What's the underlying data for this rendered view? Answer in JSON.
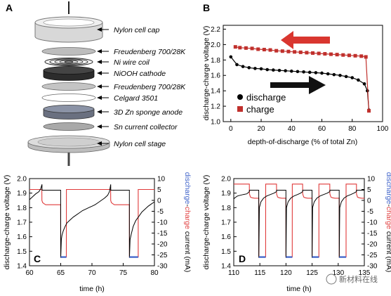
{
  "panel_a": {
    "label": "A",
    "components": [
      "Nylon cell cap",
      "Freudenberg 700/28K",
      "Ni wire coil",
      "NiOOH cathode",
      "Freudenberg 700/28K",
      "Celgard 3501",
      "3D Zn sponge anode",
      "Sn current collector",
      "Nylon cell stage"
    ]
  },
  "watermark": "新材料在线",
  "chart_data": [
    {
      "id": "B",
      "type": "scatter",
      "label": "B",
      "xlabel": "depth-of-discharge (% of total Zn)",
      "ylabel": "discharge-charge voltage (V)",
      "xlim": [
        -5,
        100
      ],
      "ylim": [
        1.0,
        2.25
      ],
      "xticks": [
        "0",
        "20",
        "40",
        "60",
        "80",
        "100"
      ],
      "yticks": [
        "1.0",
        "1.2",
        "1.4",
        "1.6",
        "1.8",
        "2.0",
        "2.2"
      ],
      "grid": false,
      "legend_position": "bottom-left",
      "series": [
        {
          "name": "discharge",
          "color": "#000000",
          "marker": "circle",
          "x": [
            0,
            4,
            8,
            12,
            16,
            20,
            24,
            28,
            32,
            36,
            40,
            44,
            48,
            52,
            56,
            60,
            64,
            68,
            72,
            76,
            80,
            84,
            88,
            90,
            91
          ],
          "y": [
            1.84,
            1.74,
            1.715,
            1.7,
            1.69,
            1.685,
            1.675,
            1.67,
            1.665,
            1.66,
            1.655,
            1.65,
            1.645,
            1.64,
            1.635,
            1.63,
            1.62,
            1.61,
            1.6,
            1.585,
            1.57,
            1.54,
            1.49,
            1.4,
            1.15
          ]
        },
        {
          "name": "charge",
          "color": "#c0302c",
          "marker": "square",
          "x": [
            91,
            89,
            86,
            82,
            78,
            74,
            70,
            66,
            62,
            58,
            54,
            50,
            46,
            42,
            38,
            34,
            30,
            26,
            22,
            18,
            14,
            10,
            6,
            3
          ],
          "y": [
            1.14,
            1.84,
            1.85,
            1.855,
            1.86,
            1.865,
            1.87,
            1.875,
            1.88,
            1.885,
            1.89,
            1.895,
            1.9,
            1.905,
            1.91,
            1.915,
            1.92,
            1.93,
            1.935,
            1.94,
            1.95,
            1.955,
            1.96,
            1.97
          ]
        }
      ]
    },
    {
      "id": "C",
      "type": "line",
      "label": "C",
      "xlabel": "time (h)",
      "ylabel": "discharge-charge voltage (V)",
      "ylabel_right": [
        "discharge",
        "-",
        "charge",
        " current (mA)"
      ],
      "xlim": [
        60,
        80
      ],
      "ylim": [
        1.4,
        2.0
      ],
      "ylim_right": [
        -30,
        10
      ],
      "xticks": [
        "60",
        "65",
        "70",
        "75",
        "80"
      ],
      "yticks": [
        "1.4",
        "1.5",
        "1.6",
        "1.7",
        "1.8",
        "1.9",
        "2.0"
      ],
      "yticks_right": [
        "-30",
        "-25",
        "-20",
        "-15",
        "-10",
        "-5",
        "0",
        "5",
        "10"
      ],
      "series": [
        {
          "name": "voltage",
          "color": "#000000",
          "axis": "left",
          "x": [
            60.0,
            60.5,
            61.0,
            61.5,
            61.8,
            62.0,
            62.01,
            62.5,
            63.0,
            63.5,
            64.0,
            64.5,
            64.99,
            65.0,
            65.1,
            65.2,
            65.4,
            65.7,
            66.0,
            66.5,
            67.0,
            67.5,
            68.0,
            68.5,
            69.0,
            69.5,
            70.0,
            70.5,
            71.0,
            71.5,
            72.0,
            72.5,
            72.8,
            73.0,
            73.01,
            73.5,
            74.0,
            74.5,
            75.0,
            75.5,
            75.99,
            76.0,
            76.1,
            76.3,
            76.6,
            77.0,
            77.5,
            78.0,
            78.5,
            79.0,
            79.5,
            80.0
          ],
          "y": [
            1.855,
            1.875,
            1.895,
            1.91,
            1.93,
            1.96,
            1.92,
            1.92,
            1.92,
            1.92,
            1.92,
            1.92,
            1.92,
            1.455,
            1.58,
            1.61,
            1.64,
            1.67,
            1.695,
            1.715,
            1.735,
            1.75,
            1.765,
            1.78,
            1.79,
            1.8,
            1.81,
            1.82,
            1.835,
            1.85,
            1.865,
            1.885,
            1.91,
            1.96,
            1.92,
            1.92,
            1.92,
            1.92,
            1.92,
            1.92,
            1.92,
            1.455,
            1.58,
            1.62,
            1.67,
            1.71,
            1.74,
            1.77,
            1.79,
            1.81,
            1.825,
            1.84
          ]
        },
        {
          "name": "current",
          "color": "#e03a3a",
          "axis": "right",
          "x": [
            60.0,
            61.98,
            61.99,
            62.1,
            62.3,
            62.6,
            63.0,
            64.99,
            65.0,
            65.9,
            65.91,
            72.99,
            73.0,
            73.1,
            73.3,
            73.6,
            74.0,
            75.99,
            76.0,
            77.4,
            77.41,
            80.0
          ],
          "y": [
            5,
            5,
            0,
            -1,
            -1.5,
            -2,
            -2,
            -2,
            -26,
            -26,
            5,
            5,
            0,
            -1,
            -1.5,
            -2,
            -2,
            -2,
            -26,
            -26,
            5,
            5
          ]
        }
      ]
    },
    {
      "id": "D",
      "type": "line",
      "label": "D",
      "xlabel": "time (h)",
      "ylabel": "discharge-charge voltage (V)",
      "ylabel_right": [
        "discharge",
        "-",
        "charge",
        " current (mA)"
      ],
      "xlim": [
        110,
        135
      ],
      "ylim": [
        1.4,
        2.0
      ],
      "ylim_right": [
        -30,
        10
      ],
      "xticks": [
        "110",
        "115",
        "120",
        "125",
        "130",
        "135"
      ],
      "yticks": [
        "1.4",
        "1.5",
        "1.6",
        "1.7",
        "1.8",
        "1.9",
        "2.0"
      ],
      "yticks_right": [
        "-30",
        "-25",
        "-20",
        "-15",
        "-10",
        "-5",
        "0",
        "5",
        "10"
      ],
      "series": [
        {
          "name": "voltage",
          "color": "#000000",
          "axis": "left",
          "x": [
            110.0,
            110.3,
            110.7,
            111.2,
            111.8,
            112.5,
            112.99,
            113.0,
            114.79,
            114.8,
            114.9,
            115.2,
            115.7,
            116.3,
            117.0,
            117.7,
            118.19,
            118.2,
            119.99,
            120.0,
            120.1,
            120.4,
            120.9,
            121.5,
            122.2,
            122.8,
            123.19,
            123.2,
            124.99,
            125.0,
            125.1,
            125.4,
            125.9,
            126.5,
            127.2,
            127.9,
            128.39,
            128.4,
            130.19,
            130.2,
            130.3,
            130.6,
            131.1,
            131.7,
            132.4,
            133.0,
            133.49,
            133.5,
            135.0
          ],
          "y": [
            1.86,
            1.87,
            1.88,
            1.885,
            1.89,
            1.895,
            1.91,
            1.92,
            1.92,
            1.455,
            1.8,
            1.84,
            1.865,
            1.88,
            1.89,
            1.9,
            1.91,
            1.92,
            1.92,
            1.455,
            1.8,
            1.84,
            1.865,
            1.88,
            1.89,
            1.9,
            1.91,
            1.92,
            1.92,
            1.455,
            1.8,
            1.84,
            1.865,
            1.88,
            1.89,
            1.9,
            1.91,
            1.92,
            1.92,
            1.455,
            1.8,
            1.84,
            1.865,
            1.88,
            1.89,
            1.9,
            1.91,
            1.92,
            1.92
          ]
        },
        {
          "name": "current",
          "color": "#e03a3a",
          "axis": "right",
          "x": [
            110.0,
            112.99,
            113.0,
            113.2,
            113.5,
            114.0,
            114.79,
            114.8,
            116.1,
            116.11,
            118.19,
            118.2,
            118.4,
            118.7,
            119.2,
            119.99,
            120.0,
            121.2,
            121.21,
            123.19,
            123.2,
            123.4,
            123.7,
            124.2,
            124.99,
            125.0,
            126.3,
            126.31,
            128.39,
            128.4,
            128.6,
            128.9,
            129.4,
            130.19,
            130.2,
            131.5,
            131.51,
            133.49,
            133.5,
            133.7,
            134.0,
            134.5,
            135.0
          ],
          "y": [
            7.5,
            7.5,
            3,
            1.5,
            1.2,
            1.0,
            1.0,
            -26,
            -26,
            7.5,
            7.5,
            3,
            1.5,
            1.2,
            1.0,
            1.0,
            -26,
            -26,
            7.5,
            7.5,
            3,
            1.5,
            1.2,
            1.0,
            1.0,
            -26,
            -26,
            7.5,
            7.5,
            3,
            1.5,
            1.2,
            1.0,
            1.0,
            -26,
            -26,
            7.5,
            7.5,
            3,
            1.5,
            1.2,
            1.0,
            1.0
          ]
        }
      ]
    }
  ]
}
